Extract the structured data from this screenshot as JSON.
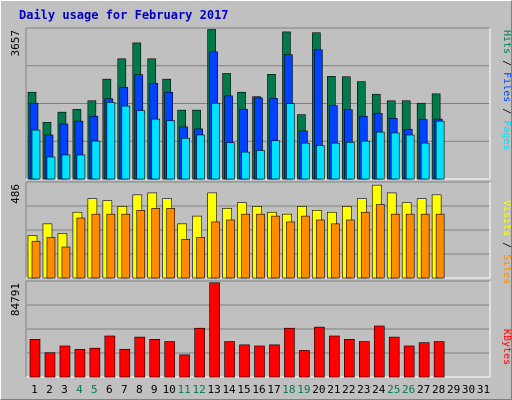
{
  "title": "Daily usage for February 2017",
  "colors": {
    "background": "#c0c0c0",
    "hits": "#007a4b",
    "files": "#0042ff",
    "pages": "#00e0ff",
    "visits": "#ffff00",
    "sites": "#ff8c00",
    "kbytes": "#ff0000",
    "weekend_label": "#007a4b"
  },
  "chart_data": [
    {
      "type": "bar",
      "panel": "hits-files-pages",
      "title": "Daily usage for February 2017",
      "max_label": "3657",
      "ymax": 3657,
      "legend": [
        "Pages",
        "Files",
        "Hits"
      ],
      "categories": [
        "1",
        "2",
        "3",
        "4",
        "5",
        "6",
        "7",
        "8",
        "9",
        "10",
        "11",
        "12",
        "13",
        "14",
        "15",
        "16",
        "17",
        "18",
        "19",
        "20",
        "21",
        "22",
        "23",
        "24",
        "25",
        "26",
        "27",
        "28",
        "29",
        "30",
        "31"
      ],
      "series": [
        {
          "name": "Hits",
          "values": [
            2130,
            1390,
            1640,
            1710,
            1920,
            2450,
            2950,
            3340,
            2950,
            2450,
            1690,
            1690,
            3670,
            2590,
            2130,
            2020,
            2570,
            3610,
            1580,
            3590,
            2520,
            2510,
            2390,
            2080,
            1920,
            1920,
            1860,
            2090,
            0,
            0,
            0
          ]
        },
        {
          "name": "Files",
          "values": [
            1860,
            1080,
            1350,
            1420,
            1540,
            1970,
            2250,
            2560,
            2350,
            2130,
            1280,
            1230,
            3120,
            2040,
            1710,
            1990,
            1980,
            3050,
            1180,
            3170,
            1800,
            1700,
            1540,
            1610,
            1490,
            1220,
            1460,
            1470,
            0,
            0,
            0
          ]
        },
        {
          "name": "Pages",
          "values": [
            1200,
            540,
            590,
            590,
            930,
            1880,
            1790,
            1680,
            1470,
            1430,
            1000,
            1080,
            1860,
            890,
            660,
            700,
            940,
            1850,
            880,
            820,
            880,
            900,
            930,
            1150,
            1130,
            1080,
            880,
            1420,
            0,
            0,
            0
          ]
        }
      ]
    },
    {
      "type": "bar",
      "panel": "visits-sites",
      "max_label": "486",
      "ymax": 486,
      "legend": [
        "Sites",
        "Visits"
      ],
      "categories": [
        "1",
        "2",
        "3",
        "4",
        "5",
        "6",
        "7",
        "8",
        "9",
        "10",
        "11",
        "12",
        "13",
        "14",
        "15",
        "16",
        "17",
        "18",
        "19",
        "20",
        "21",
        "22",
        "23",
        "24",
        "25",
        "26",
        "27",
        "28",
        "29",
        "30",
        "31"
      ],
      "series": [
        {
          "name": "Visits",
          "values": [
            220,
            280,
            230,
            340,
            410,
            400,
            370,
            430,
            440,
            410,
            280,
            320,
            440,
            360,
            390,
            370,
            340,
            330,
            370,
            350,
            340,
            370,
            410,
            480,
            440,
            390,
            410,
            430,
            0,
            0,
            0
          ]
        },
        {
          "name": "Sites",
          "values": [
            190,
            210,
            160,
            310,
            330,
            330,
            330,
            350,
            360,
            360,
            200,
            210,
            290,
            300,
            330,
            330,
            320,
            290,
            320,
            300,
            280,
            300,
            340,
            380,
            330,
            330,
            330,
            330,
            0,
            0,
            0
          ]
        }
      ]
    },
    {
      "type": "bar",
      "panel": "kbytes",
      "max_label": "84791",
      "ymax": 84791,
      "legend": [
        "KBytes"
      ],
      "categories": [
        "1",
        "2",
        "3",
        "4",
        "5",
        "6",
        "7",
        "8",
        "9",
        "10",
        "11",
        "12",
        "13",
        "14",
        "15",
        "16",
        "17",
        "18",
        "19",
        "20",
        "21",
        "22",
        "23",
        "24",
        "25",
        "26",
        "27",
        "28",
        "29",
        "30",
        "31"
      ],
      "series": [
        {
          "name": "KBytes",
          "values": [
            34000,
            22000,
            28000,
            25000,
            26000,
            37000,
            25000,
            36000,
            34000,
            32000,
            20000,
            44000,
            85000,
            32000,
            29000,
            28000,
            29000,
            44000,
            24000,
            45000,
            37000,
            34000,
            32000,
            46000,
            36000,
            28000,
            31000,
            32000,
            0,
            0,
            0
          ]
        }
      ]
    }
  ]
}
